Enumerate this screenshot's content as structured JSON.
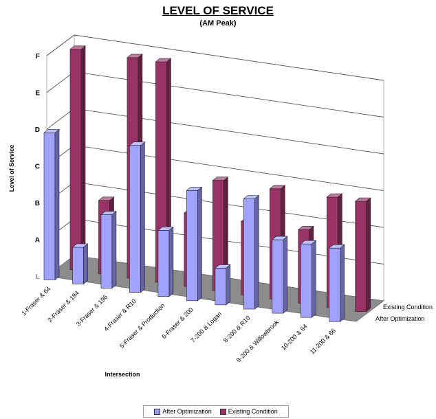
{
  "chart_data": {
    "type": "bar",
    "title": "LEVEL OF SERVICE",
    "subtitle": "(AM Peak)",
    "xlabel": "Intersection",
    "ylabel": "Level of Service",
    "y_ticks": [
      "L",
      "A",
      "B",
      "C",
      "D",
      "E",
      "F"
    ],
    "ylim": [
      0,
      6
    ],
    "grid": true,
    "legend": "bottom",
    "categories": [
      "1-Fraser & 64",
      "2-Fraser & 194",
      "3-Fraser & 196",
      "4-Fraser & R10",
      "5-Fraser & Production",
      "6-Fraser & 200",
      "7-200 & Logan",
      "8-200 & R10",
      "9-200 & Willowbrook",
      "10-200 & 64",
      "11-200 & 66"
    ],
    "series": [
      {
        "name": "After Optimization",
        "color": "#9c9cff",
        "values": [
          4.0,
          1.0,
          2.0,
          4.0,
          1.8,
          3.0,
          1.0,
          3.0,
          2.0,
          2.0,
          2.0
        ]
      },
      {
        "name": "Existing Condition",
        "color": "#993366",
        "values": [
          6.0,
          2.0,
          6.0,
          6.0,
          2.0,
          3.0,
          2.0,
          3.0,
          2.0,
          3.0,
          3.0
        ]
      }
    ]
  }
}
